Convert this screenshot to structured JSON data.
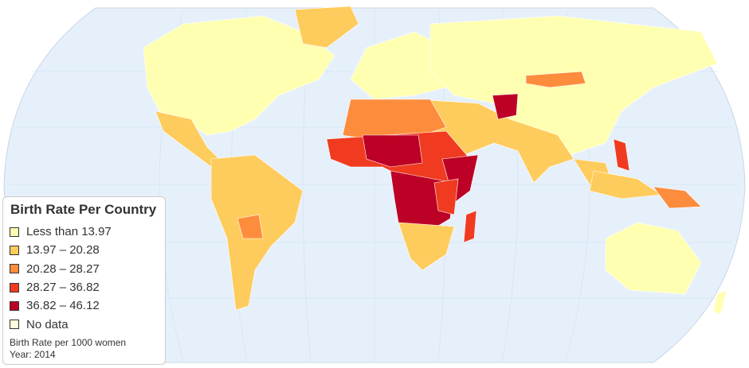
{
  "legend": {
    "title": "Birth Rate Per Country",
    "items": [
      {
        "label": "Less than 13.97",
        "color": "#ffffb2"
      },
      {
        "label": "13.97 – 20.28",
        "color": "#fecc5c"
      },
      {
        "label": "20.28 – 28.27",
        "color": "#fd8d3c"
      },
      {
        "label": "28.27 – 36.82",
        "color": "#f03b20"
      },
      {
        "label": "36.82 – 46.12",
        "color": "#bd0026"
      },
      {
        "label": "No data",
        "color": "#ffffdf"
      }
    ],
    "notes": [
      "Birth Rate per 1000 women",
      "Year: 2014"
    ]
  }
}
